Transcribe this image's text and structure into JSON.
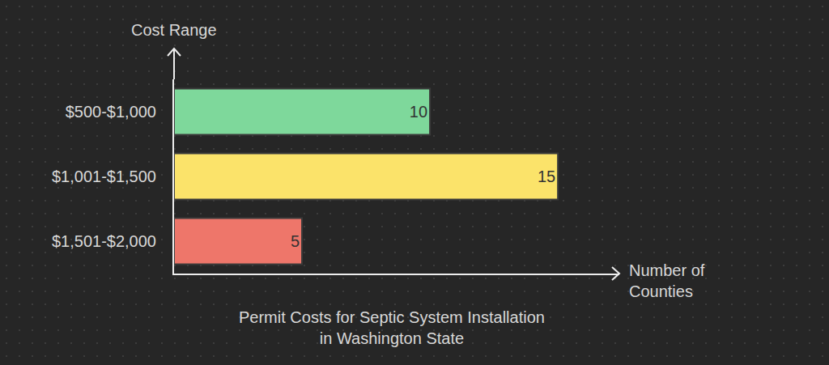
{
  "chart_data": {
    "type": "bar",
    "orientation": "horizontal",
    "title": "Permit Costs for Septic System Installation\nin Washington State",
    "x_label": "Number of\nCounties",
    "y_label": "Cost Range",
    "categories": [
      "$500-$1,000",
      "$1,001-$1,500",
      "$1,501-$2,000"
    ],
    "values": [
      10,
      15,
      5
    ],
    "colors": [
      "#7ed89b",
      "#fbe36a",
      "#ee766a"
    ],
    "xlim": [
      0,
      17.4
    ],
    "grid": false,
    "data_labels": true,
    "tick_labels": "y"
  }
}
